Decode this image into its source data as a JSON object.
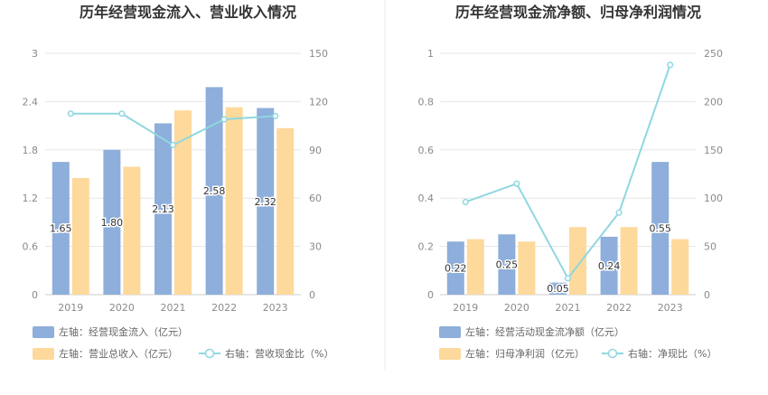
{
  "chart_data": [
    {
      "type": "bar",
      "title": "历年经营现金流入、营业收入情况",
      "categories": [
        "2019",
        "2020",
        "2021",
        "2022",
        "2023"
      ],
      "series": [
        {
          "name": "左轴：经营现金流入（亿元）",
          "axis": "left",
          "kind": "bar",
          "color": "#8eaedb",
          "values": [
            1.65,
            1.8,
            2.13,
            2.58,
            2.32
          ],
          "labels": [
            "1.65",
            "1.80",
            "2.13",
            "2.58",
            "2.32"
          ]
        },
        {
          "name": "左轴：营业总收入（亿元）",
          "axis": "left",
          "kind": "bar",
          "color": "#fdd99b",
          "values": [
            1.45,
            1.59,
            2.29,
            2.33,
            2.07
          ]
        },
        {
          "name": "右轴：营收现金比（%）",
          "axis": "right",
          "kind": "line",
          "color": "#8fd7df",
          "values": [
            112.5,
            112.5,
            93,
            109,
            111
          ]
        }
      ],
      "yleft": {
        "ticks": [
          "0",
          "0.6",
          "1.2",
          "1.8",
          "2.4",
          "3"
        ],
        "range": [
          0,
          3
        ]
      },
      "yright": {
        "ticks": [
          "0",
          "30",
          "60",
          "90",
          "120",
          "150"
        ],
        "range": [
          0,
          150
        ]
      },
      "grid": true,
      "legend_position": "bottom-left"
    },
    {
      "type": "bar",
      "title": "历年经营现金流净额、归母净利润情况",
      "categories": [
        "2019",
        "2020",
        "2021",
        "2022",
        "2023"
      ],
      "series": [
        {
          "name": "左轴：经营活动现金流净额（亿元）",
          "axis": "left",
          "kind": "bar",
          "color": "#8eaedb",
          "values": [
            0.22,
            0.25,
            0.05,
            0.24,
            0.55
          ],
          "labels": [
            "0.22",
            "0.25",
            "0.05",
            "0.24",
            "0.55"
          ]
        },
        {
          "name": "左轴：归母净利润（亿元）",
          "axis": "left",
          "kind": "bar",
          "color": "#fdd99b",
          "values": [
            0.23,
            0.22,
            0.28,
            0.28,
            0.23
          ]
        },
        {
          "name": "右轴：净现比（%）",
          "axis": "right",
          "kind": "line",
          "color": "#8fd7df",
          "values": [
            96,
            115,
            17,
            85,
            238
          ]
        }
      ],
      "yleft": {
        "ticks": [
          "0",
          "0.2",
          "0.4",
          "0.6",
          "0.8",
          "1"
        ],
        "range": [
          0,
          1
        ]
      },
      "yright": {
        "ticks": [
          "0",
          "50",
          "100",
          "150",
          "200",
          "250"
        ],
        "range": [
          0,
          250
        ]
      },
      "grid": true,
      "legend_position": "bottom-left"
    }
  ]
}
